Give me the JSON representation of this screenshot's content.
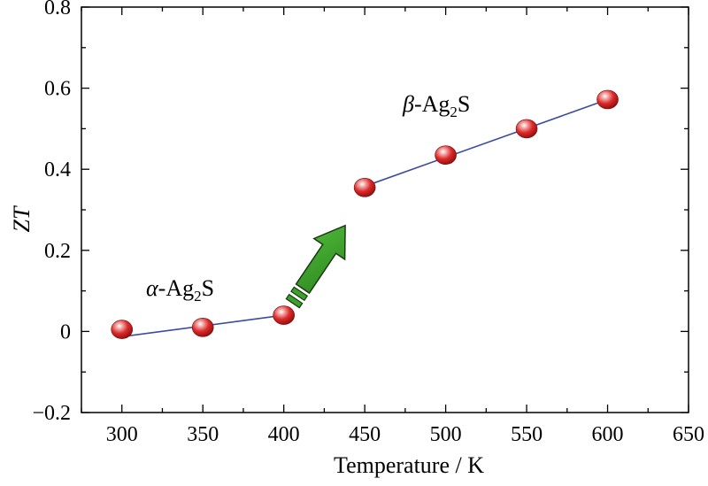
{
  "chart_data": {
    "type": "scatter",
    "xlabel": "Temperature / K",
    "ylabel": "ZT",
    "xlim": [
      275,
      650
    ],
    "ylim": [
      -0.2,
      0.8
    ],
    "x_ticks": [
      300,
      350,
      400,
      450,
      500,
      550,
      600,
      650
    ],
    "y_ticks": [
      -0.2,
      0,
      0.2,
      0.4,
      0.6,
      0.8
    ],
    "y_tick_labels": [
      "−0.2",
      "0",
      "0.2",
      "0.4",
      "0.6",
      "0.8"
    ],
    "grid": false,
    "series": [
      {
        "name": "α-Ag₂S",
        "x": [
          300,
          350,
          400
        ],
        "y": [
          0.005,
          0.01,
          0.04
        ],
        "fit": {
          "x": [
            300,
            400
          ],
          "y": [
            -0.013,
            0.04
          ]
        }
      },
      {
        "name": "β-Ag₂S",
        "x": [
          450,
          500,
          550,
          600
        ],
        "y": [
          0.355,
          0.435,
          0.5,
          0.572
        ],
        "fit": {
          "x": [
            450,
            600
          ],
          "y": [
            0.358,
            0.572
          ]
        }
      }
    ],
    "annotations": {
      "alpha_label": {
        "greek": "α",
        "text": "-Ag",
        "sub": "2",
        "tail": "S"
      },
      "beta_label": {
        "greek": "β",
        "text": "-Ag",
        "sub": "2",
        "tail": "S"
      },
      "arrow": "green arrow indicating transition from α-Ag2S to β-Ag2S"
    },
    "colors": {
      "marker": "#d8242a",
      "fit_line": "#3b4ba0",
      "arrow": "#3aa12a"
    }
  }
}
